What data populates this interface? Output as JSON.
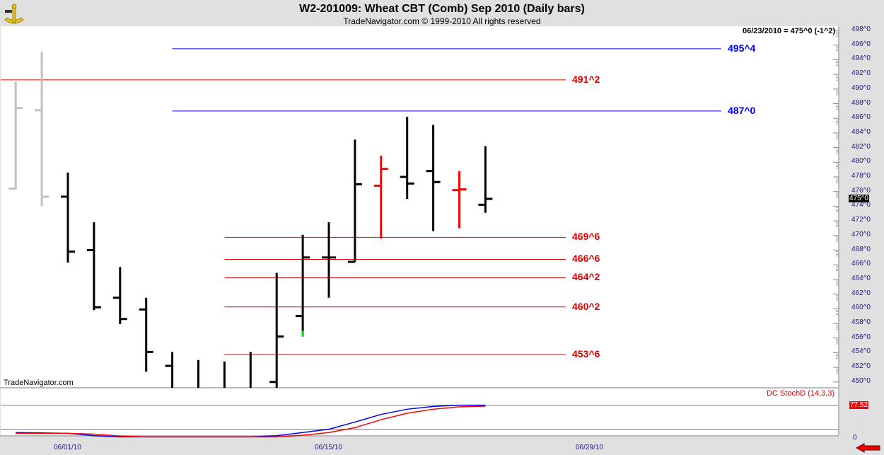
{
  "header": {
    "title": "W2-201009:  Wheat CBT (Comb) Sep 2010  (Daily bars)",
    "subtitle": "TradeNavigator.com © 1999-2010 All rights reserved",
    "status": "06/23/2010 = 475^0 (-1^2)",
    "logo_icon": "sextant-icon"
  },
  "watermark": "TradeNavigator.com",
  "colors": {
    "up": "#000000",
    "down": "#ff0000",
    "prior": "#c0c0c0",
    "blue_level": "#0000ff",
    "red_level": "#e00000",
    "stoch_k": "#0000ff",
    "stoch_d": "#ff0000",
    "highlight": "#00e000"
  },
  "chart_data": [
    {
      "type": "ohlc",
      "title": "W2-201009:  Wheat CBT (Comb) Sep 2010  (Daily bars)",
      "ylim": [
        449.5,
        498.5
      ],
      "y_ticks": [
        "498^0",
        "496^0",
        "494^0",
        "492^0",
        "490^0",
        "488^0",
        "486^0",
        "484^0",
        "482^0",
        "480^0",
        "478^0",
        "476^0",
        "474^0",
        "472^0",
        "470^0",
        "468^0",
        "466^0",
        "464^0",
        "462^0",
        "460^0",
        "458^0",
        "456^0",
        "454^0",
        "452^0",
        "450^0"
      ],
      "x_ticks": [
        "06/01/10",
        "06/15/10",
        "06/29/10"
      ],
      "last_price_label": "475^0",
      "bars": [
        {
          "date": "05/27/10",
          "open": 476.4,
          "high": 491.0,
          "low": 476.3,
          "close": 487.4,
          "color": "prior"
        },
        {
          "date": "05/28/10",
          "open": 487.1,
          "high": 495.1,
          "low": 474.0,
          "close": 475.3,
          "color": "prior"
        },
        {
          "date": "06/01/10",
          "open": 475.3,
          "high": 478.6,
          "low": 466.3,
          "close": 467.8,
          "color": "up"
        },
        {
          "date": "06/02/10",
          "open": 468.0,
          "high": 471.8,
          "low": 459.8,
          "close": 460.2,
          "color": "up"
        },
        {
          "date": "06/03/10",
          "open": 461.5,
          "high": 465.7,
          "low": 457.9,
          "close": 458.6,
          "color": "up"
        },
        {
          "date": "06/04/10",
          "open": 459.9,
          "high": 461.5,
          "low": 451.4,
          "close": 454.1,
          "color": "up"
        },
        {
          "date": "06/07/10",
          "open": 452.2,
          "high": 454.1,
          "low": null,
          "close": null,
          "color": "up"
        },
        {
          "date": "06/08/10",
          "open": null,
          "high": 453.0,
          "low": null,
          "close": null,
          "color": "up"
        },
        {
          "date": "06/09/10",
          "open": null,
          "high": 452.8,
          "low": null,
          "close": null,
          "color": "up"
        },
        {
          "date": "06/10/10",
          "open": null,
          "high": 454.1,
          "low": null,
          "close": null,
          "color": "up"
        },
        {
          "date": "06/11/10",
          "open": 450.0,
          "high": 464.9,
          "low": null,
          "close": 456.2,
          "color": "up"
        },
        {
          "date": "06/14/10",
          "open": 459.0,
          "high": 470.1,
          "low": 456.2,
          "close": 467.0,
          "color": "up",
          "highlight_low": 457.0
        },
        {
          "date": "06/15/10",
          "open": 467.0,
          "high": 471.8,
          "low": 461.5,
          "close": 467.0,
          "color": "up"
        },
        {
          "date": "06/16/10",
          "open": 466.4,
          "high": 483.1,
          "low": 466.4,
          "close": 477.0,
          "color": "up"
        },
        {
          "date": "06/17/10",
          "open": 476.8,
          "high": 480.9,
          "low": 469.6,
          "close": 479.1,
          "color": "down"
        },
        {
          "date": "06/18/10",
          "open": 478.0,
          "high": 486.2,
          "low": 475.0,
          "close": 477.1,
          "color": "up"
        },
        {
          "date": "06/21/10",
          "open": 478.8,
          "high": 485.1,
          "low": 470.6,
          "close": 477.3,
          "color": "up"
        },
        {
          "date": "06/22/10",
          "open": 476.2,
          "high": 478.8,
          "low": 471.0,
          "close": 476.3,
          "color": "down"
        },
        {
          "date": "06/23/10",
          "open": 474.2,
          "high": 482.2,
          "low": 473.1,
          "close": 475.0,
          "color": "up"
        }
      ],
      "levels": [
        {
          "label": "495^4",
          "value": 495.5,
          "color": "blue_level",
          "from": "06/07/10"
        },
        {
          "label": "491^2",
          "value": 491.25,
          "color": "red_level",
          "from": "start"
        },
        {
          "label": "487^0",
          "value": 487.0,
          "color": "blue_level",
          "from": "06/07/10"
        },
        {
          "label": "469^6",
          "value": 469.75,
          "color": "red_level",
          "from": "06/09/10"
        },
        {
          "label": "466^6",
          "value": 466.75,
          "color": "red_level",
          "from": "06/09/10"
        },
        {
          "label": "464^2",
          "value": 464.25,
          "color": "red_level",
          "from": "06/09/10"
        },
        {
          "label": "460^2",
          "value": 460.25,
          "color": "red_level",
          "from": "06/09/10"
        },
        {
          "label": "453^6",
          "value": 453.75,
          "color": "red_level",
          "from": "06/09/10"
        }
      ]
    },
    {
      "type": "line",
      "title": "DC StochD (14,3,3)",
      "ylim": [
        0,
        100
      ],
      "reference_lines": [
        20,
        80
      ],
      "y_ticks": [
        "0"
      ],
      "last_value_label": "77.52",
      "series": [
        {
          "color": "stoch_k",
          "values": [
            12,
            11,
            10,
            4,
            1,
            1,
            1,
            1,
            1,
            1,
            4,
            12,
            20,
            38,
            57,
            70,
            77,
            80,
            80
          ]
        },
        {
          "color": "stoch_d",
          "values": [
            10,
            10,
            10,
            8,
            3,
            1,
            1,
            1,
            1,
            1,
            1,
            5,
            12,
            24,
            44,
            60,
            70,
            76,
            77.52
          ]
        }
      ]
    }
  ]
}
